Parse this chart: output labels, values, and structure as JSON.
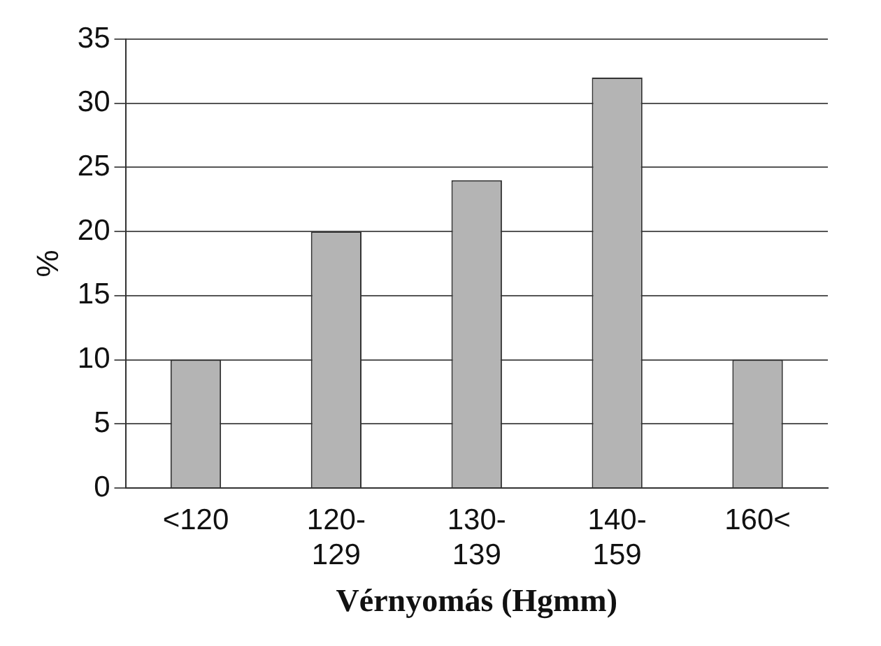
{
  "chart_data": {
    "type": "bar",
    "categories": [
      "<120",
      "120-129",
      "130-139",
      "140-159",
      "160<"
    ],
    "values": [
      10,
      20,
      24,
      32,
      10
    ],
    "color": "#b4b4b4",
    "ylim": [
      0,
      35
    ],
    "yticks": [
      0,
      5,
      10,
      15,
      20,
      25,
      30,
      35
    ],
    "grid": "y",
    "ylabel": "%",
    "xlabel": "Vérnyomás (Hgmm)"
  }
}
